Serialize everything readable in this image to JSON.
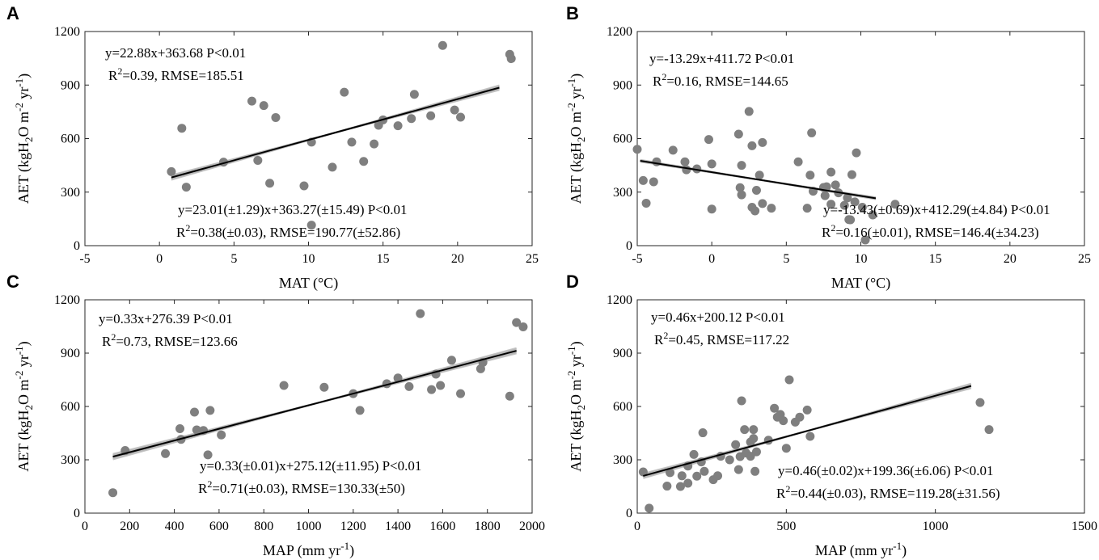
{
  "colors": {
    "point": "#7f7f7f",
    "fit_line": "#000000",
    "bootstrap_band": "#b5b5b5",
    "axis": "#262626"
  },
  "ylabel_parts": [
    "AET (kgH",
    "2",
    "O m",
    "-2",
    " yr",
    "-1",
    ")"
  ],
  "chart_data": [
    {
      "id": "A",
      "type": "scatter",
      "panel_label": "A",
      "xlabel_parts": [
        "MAT (°C)"
      ],
      "xlim": [
        -5,
        25
      ],
      "ylim": [
        0,
        1200
      ],
      "xticks": [
        "-5",
        "0",
        "5",
        "10",
        "15",
        "20",
        "25"
      ],
      "yticks": [
        "0",
        "300",
        "600",
        "900",
        "1200"
      ],
      "fit": {
        "slope": 22.88,
        "intercept": 363.68,
        "x_range": [
          0.8,
          22.8
        ]
      },
      "eq_top": {
        "line1": "y=22.88x+363.68  P<0.01",
        "r2_prefix": "R",
        "r2_sup": "2",
        "r2_rest": "=0.39, RMSE=185.51"
      },
      "eq_bottom": {
        "line1": "y=23.01(±1.29)x+363.27(±15.49)  P<0.01",
        "r2_prefix": "R",
        "r2_sup": "2",
        "r2_rest": "=0.38(±0.03), RMSE=190.77(±52.86)"
      },
      "points": [
        [
          0.8,
          415
        ],
        [
          1.5,
          658
        ],
        [
          1.8,
          328
        ],
        [
          4.3,
          468
        ],
        [
          6.2,
          810
        ],
        [
          6.6,
          478
        ],
        [
          7,
          785
        ],
        [
          7.4,
          350
        ],
        [
          7.8,
          718
        ],
        [
          9.7,
          335
        ],
        [
          10.2,
          580
        ],
        [
          10.2,
          115
        ],
        [
          11.6,
          440
        ],
        [
          12.4,
          860
        ],
        [
          12.9,
          580
        ],
        [
          13.7,
          472
        ],
        [
          14.4,
          570
        ],
        [
          14.7,
          675
        ],
        [
          15,
          705
        ],
        [
          16,
          672
        ],
        [
          16.9,
          712
        ],
        [
          17.1,
          848
        ],
        [
          18.2,
          728
        ],
        [
          19,
          1122
        ],
        [
          19.8,
          760
        ],
        [
          20.2,
          720
        ],
        [
          23.5,
          1072
        ],
        [
          23.6,
          1048
        ]
      ]
    },
    {
      "id": "B",
      "type": "scatter",
      "panel_label": "B",
      "xlabel_parts": [
        "MAT (°C)"
      ],
      "xlim": [
        -5,
        25
      ],
      "ylim": [
        0,
        1200
      ],
      "xticks": [
        "-5",
        "0",
        "5",
        "10",
        "15",
        "20",
        "25"
      ],
      "yticks": [
        "0",
        "300",
        "600",
        "900",
        "1200"
      ],
      "fit": {
        "slope": -13.29,
        "intercept": 411.72,
        "x_range": [
          -4.8,
          11
        ]
      },
      "eq_top": {
        "line1": "y=-13.29x+411.72  P<0.01",
        "r2_prefix": "R",
        "r2_sup": "2",
        "r2_rest": "=0.16, RMSE=144.65"
      },
      "eq_bottom": {
        "line1": "y=-13.43(±0.69)x+412.29(±4.84)  P<0.01",
        "r2_prefix": "R",
        "r2_sup": "2",
        "r2_rest": "=0.16(±0.01), RMSE=146.4(±34.23)"
      },
      "points": [
        [
          -5,
          540
        ],
        [
          -4.6,
          365
        ],
        [
          -4.4,
          238
        ],
        [
          -3.9,
          358
        ],
        [
          -3.7,
          470
        ],
        [
          -2.6,
          535
        ],
        [
          -1.8,
          470
        ],
        [
          -1.7,
          425
        ],
        [
          -1,
          430
        ],
        [
          -0.2,
          595
        ],
        [
          0,
          458
        ],
        [
          0,
          205
        ],
        [
          1.8,
          625
        ],
        [
          1.9,
          325
        ],
        [
          2,
          450
        ],
        [
          2,
          285
        ],
        [
          2.5,
          752
        ],
        [
          2.7,
          215
        ],
        [
          2.7,
          560
        ],
        [
          2.9,
          195
        ],
        [
          3,
          310
        ],
        [
          3.2,
          395
        ],
        [
          3.4,
          578
        ],
        [
          3.4,
          236
        ],
        [
          4,
          210
        ],
        [
          5.8,
          470
        ],
        [
          6.4,
          210
        ],
        [
          6.6,
          395
        ],
        [
          6.7,
          632
        ],
        [
          6.8,
          305
        ],
        [
          7.5,
          326
        ],
        [
          7.6,
          280
        ],
        [
          7.7,
          330
        ],
        [
          8,
          412
        ],
        [
          8,
          232
        ],
        [
          8.3,
          340
        ],
        [
          8.5,
          296
        ],
        [
          8.9,
          226
        ],
        [
          9.1,
          268
        ],
        [
          9.2,
          146
        ],
        [
          9.3,
          145
        ],
        [
          9.4,
          398
        ],
        [
          9.6,
          245
        ],
        [
          9.7,
          520
        ],
        [
          10.1,
          215
        ],
        [
          10.3,
          32
        ],
        [
          10.8,
          172
        ],
        [
          12.3,
          232
        ]
      ]
    },
    {
      "id": "C",
      "type": "scatter",
      "panel_label": "C",
      "xlabel_parts": [
        "MAP (mm yr",
        "-1",
        ")"
      ],
      "xlim": [
        0,
        2000
      ],
      "ylim": [
        0,
        1200
      ],
      "xticks": [
        "0",
        "200",
        "400",
        "600",
        "800",
        "1000",
        "1200",
        "1400",
        "1600",
        "1800",
        "2000"
      ],
      "yticks": [
        "0",
        "300",
        "600",
        "900",
        "1200"
      ],
      "fit": {
        "slope": 0.33,
        "intercept": 276.39,
        "x_range": [
          125,
          1930
        ]
      },
      "eq_top": {
        "line1": "y=0.33x+276.39  P<0.01",
        "r2_prefix": "R",
        "r2_sup": "2",
        "r2_rest": "=0.73, RMSE=123.66"
      },
      "eq_bottom": {
        "line1": "y=0.33(±0.01)x+275.12(±11.95)  P<0.01",
        "r2_prefix": "R",
        "r2_sup": "2",
        "r2_rest": "=0.71(±0.03), RMSE=130.33(±50)"
      },
      "points": [
        [
          125,
          115
        ],
        [
          180,
          352
        ],
        [
          360,
          335
        ],
        [
          425,
          475
        ],
        [
          430,
          415
        ],
        [
          490,
          568
        ],
        [
          500,
          468
        ],
        [
          530,
          465
        ],
        [
          550,
          328
        ],
        [
          560,
          578
        ],
        [
          610,
          440
        ],
        [
          890,
          718
        ],
        [
          1070,
          708
        ],
        [
          1200,
          672
        ],
        [
          1230,
          578
        ],
        [
          1350,
          728
        ],
        [
          1400,
          760
        ],
        [
          1450,
          712
        ],
        [
          1500,
          1122
        ],
        [
          1550,
          695
        ],
        [
          1570,
          782
        ],
        [
          1590,
          718
        ],
        [
          1640,
          860
        ],
        [
          1680,
          672
        ],
        [
          1770,
          812
        ],
        [
          1780,
          848
        ],
        [
          1900,
          658
        ],
        [
          1930,
          1072
        ],
        [
          1960,
          1048
        ]
      ]
    },
    {
      "id": "D",
      "type": "scatter",
      "panel_label": "D",
      "xlabel_parts": [
        "MAP (mm yr",
        "-1",
        ")"
      ],
      "xlim": [
        0,
        1500
      ],
      "ylim": [
        0,
        1200
      ],
      "xticks": [
        "0",
        "500",
        "1000",
        "1500"
      ],
      "yticks": [
        "0",
        "300",
        "600",
        "900",
        "1200"
      ],
      "fit": {
        "slope": 0.46,
        "intercept": 200.12,
        "x_range": [
          20,
          1120
        ]
      },
      "eq_top": {
        "line1": "y=0.46x+200.12  P<0.01",
        "r2_prefix": "R",
        "r2_sup": "2",
        "r2_rest": "=0.45, RMSE=117.22"
      },
      "eq_bottom": {
        "line1": "y=0.46(±0.02)x+199.36(±6.06)  P<0.01",
        "r2_prefix": "R",
        "r2_sup": "2",
        "r2_rest": "=0.44(±0.03), RMSE=119.28(±31.56)"
      },
      "points": [
        [
          20,
          232
        ],
        [
          40,
          28
        ],
        [
          100,
          152
        ],
        [
          110,
          228
        ],
        [
          145,
          150
        ],
        [
          150,
          210
        ],
        [
          170,
          168
        ],
        [
          170,
          265
        ],
        [
          190,
          330
        ],
        [
          200,
          208
        ],
        [
          215,
          288
        ],
        [
          220,
          452
        ],
        [
          225,
          235
        ],
        [
          255,
          188
        ],
        [
          270,
          210
        ],
        [
          280,
          320
        ],
        [
          310,
          300
        ],
        [
          330,
          385
        ],
        [
          340,
          245
        ],
        [
          345,
          318
        ],
        [
          350,
          632
        ],
        [
          360,
          470
        ],
        [
          365,
          338
        ],
        [
          380,
          320
        ],
        [
          380,
          400
        ],
        [
          390,
          420
        ],
        [
          390,
          470
        ],
        [
          395,
          235
        ],
        [
          400,
          345
        ],
        [
          440,
          410
        ],
        [
          460,
          590
        ],
        [
          470,
          540
        ],
        [
          480,
          555
        ],
        [
          490,
          520
        ],
        [
          500,
          365
        ],
        [
          510,
          750
        ],
        [
          530,
          512
        ],
        [
          545,
          540
        ],
        [
          570,
          580
        ],
        [
          580,
          432
        ],
        [
          1150,
          622
        ],
        [
          1180,
          470
        ]
      ]
    }
  ]
}
